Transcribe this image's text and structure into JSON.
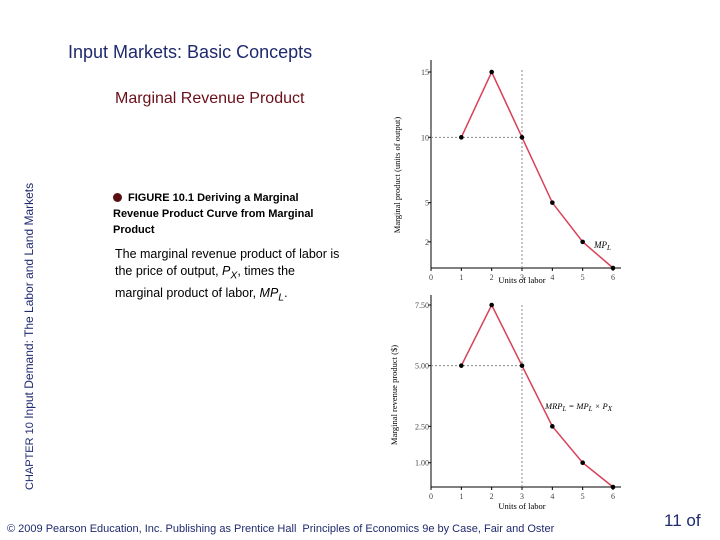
{
  "slide": {
    "title": "Input Markets:  Basic Concepts",
    "subtitle": "Marginal Revenue Product",
    "side_label_chapter": "CHAPTER 10",
    "side_label_text": "Input Demand:  The Labor and Land Markets",
    "figure_caption": "FIGURE 10.1  Deriving a Marginal Revenue Product Curve from Marginal Product",
    "description_pre": "The marginal revenue product of labor is the price of output, ",
    "description_px": "P",
    "description_px_sub": "X",
    "description_mid": ", times the marginal product of labor, ",
    "description_mpl": "MP",
    "description_mpl_sub": "L",
    "description_end": ".",
    "footer_left": "© 2009 Pearson Education, Inc. Publishing as Prentice Hall",
    "footer_right": "Principles of Economics 9e by Case, Fair and Oster",
    "page_number": "11 of"
  },
  "colors": {
    "title": "#1f2a6e",
    "subtitle": "#6b0f1a",
    "curve": "#d8405a",
    "point": "#000000",
    "guide": "#888888"
  },
  "chart_data": [
    {
      "type": "line",
      "ylabel": "Marginal product (units of output)",
      "xlabel": "",
      "x": [
        1,
        2,
        3,
        4,
        5,
        6
      ],
      "series": [
        {
          "name": "MPL",
          "values": [
            10,
            15,
            10,
            5,
            2,
            0
          ]
        }
      ],
      "xlim": [
        0,
        6
      ],
      "ylim": [
        0,
        15
      ],
      "xticks": [
        "0",
        "1",
        "2",
        "3",
        "4",
        "5",
        "6"
      ],
      "yticks": [
        {
          "value": 15,
          "label": "15"
        },
        {
          "value": 10,
          "label": "10"
        },
        {
          "value": 5,
          "label": "5"
        },
        {
          "value": 2,
          "label": "2"
        }
      ],
      "curve_label": "MP",
      "curve_label_sub": "L",
      "guides": {
        "x": 3,
        "y": 10
      },
      "grid": false
    },
    {
      "type": "line",
      "ylabel": "Marginal revenue product ($)",
      "xlabel": "Units of labor",
      "x": [
        1,
        2,
        3,
        4,
        5,
        6
      ],
      "series": [
        {
          "name": "MRPL",
          "values": [
            5.0,
            7.5,
            5.0,
            2.5,
            1.0,
            0
          ]
        }
      ],
      "xlim": [
        0,
        6
      ],
      "ylim": [
        0,
        7.5
      ],
      "xticks": [
        "0",
        "1",
        "2",
        "3",
        "4",
        "5",
        "6"
      ],
      "yticks": [
        {
          "value": 7.5,
          "label": "7.50"
        },
        {
          "value": 5.0,
          "label": "5.00"
        },
        {
          "value": 2.5,
          "label": "2.50"
        },
        {
          "value": 1.0,
          "label": "1.00"
        }
      ],
      "curve_label": "MRP",
      "curve_label_sub": "L",
      "curve_label_tail": " = MP",
      "curve_label_sub2": "L",
      "curve_label_tail2": " × P",
      "curve_label_sub3": "X",
      "guides": {
        "x": 3,
        "y": 5.0
      },
      "grid": false
    }
  ],
  "top_xlabel": "Units of labor"
}
